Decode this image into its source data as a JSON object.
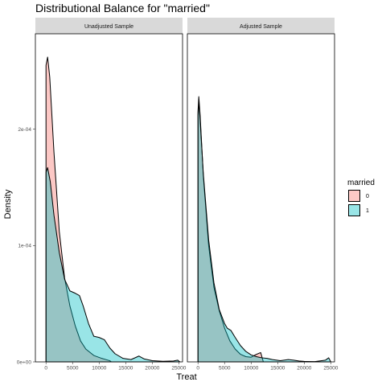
{
  "chart_data": {
    "type": "area",
    "title": "Distributional Balance for \"married\"",
    "xlabel": "Treat",
    "ylabel": "Density",
    "xlim": [
      -2000,
      25700
    ],
    "ylim": [
      0,
      0.000282
    ],
    "x_ticks": [
      0,
      5000,
      10000,
      15000,
      20000,
      25000
    ],
    "x_tick_labels": [
      "0",
      "5000",
      "10000",
      "15000",
      "20000",
      "25000"
    ],
    "y_ticks": [
      0,
      0.0001,
      0.0002
    ],
    "y_tick_labels": [
      "0e+00",
      "1e-04",
      "2e-04"
    ],
    "grid": false,
    "legend": {
      "title": "married",
      "position": "right",
      "entries": [
        {
          "label": "0",
          "color": "#F8766D"
        },
        {
          "label": "1",
          "color": "#00BFC4"
        }
      ]
    },
    "fill_alpha": 0.4,
    "panels": [
      {
        "label": "Unadjusted Sample",
        "series": [
          {
            "name": "0",
            "color": "#F8766D",
            "x": [
              0,
              300,
              700,
              1500,
              2500,
              3500,
              4500,
              5500,
              6500,
              7500,
              9000,
              10500,
              12000,
              12300
            ],
            "y": [
              0.000255,
              0.000262,
              0.000245,
              0.00018,
              0.000112,
              7.2e-05,
              4.8e-05,
              3.1e-05,
              1.8e-05,
              1.1e-05,
              5.5e-06,
              3e-06,
              1e-06,
              0
            ]
          },
          {
            "name": "1",
            "color": "#00BFC4",
            "x": [
              0,
              300,
              800,
              1500,
              2500,
              3500,
              4500,
              5500,
              6300,
              7000,
              8000,
              9000,
              10000,
              11000,
              12000,
              13000,
              14500,
              16000,
              17500,
              18500,
              20000,
              22000,
              24000,
              24800,
              25200
            ],
            "y": [
              0.000163,
              0.000167,
              0.000155,
              0.000126,
              9.4e-05,
              7.1e-05,
              6.1e-05,
              5.9e-05,
              5.7e-05,
              4.8e-05,
              3.3e-05,
              2.2e-05,
              2.1e-05,
              1.9e-05,
              1.2e-05,
              7e-06,
              3e-06,
              2e-06,
              5e-06,
              2.5e-06,
              1e-06,
              5e-07,
              8e-07,
              1.5e-06,
              0
            ]
          }
        ]
      },
      {
        "label": "Adjusted Sample",
        "series": [
          {
            "name": "0",
            "color": "#F8766D",
            "x": [
              0,
              150,
              400,
              1000,
              2000,
              3000,
              4000,
              5000,
              6000,
              7000,
              8000,
              9000,
              10000,
              11000,
              11800,
              12300
            ],
            "y": [
              0.000215,
              0.000228,
              0.000212,
              0.00016,
              0.0001,
              6.4e-05,
              4.4e-05,
              2.9e-05,
              1.8e-05,
              1.1e-05,
              6.5e-06,
              4.5e-06,
              4e-06,
              6.5e-06,
              8e-06,
              0
            ]
          },
          {
            "name": "1",
            "color": "#00BFC4",
            "x": [
              0,
              150,
              400,
              1000,
              2000,
              3000,
              4000,
              5000,
              5500,
              6200,
              7000,
              8000,
              9000,
              10000,
              11000,
              12000,
              13000,
              14000,
              15500,
              17000,
              18000,
              19000,
              20000,
              22000,
              24000,
              24600,
              25000
            ],
            "y": [
              0.000212,
              0.000223,
              0.000208,
              0.000162,
              0.000105,
              6.8e-05,
              4.5e-05,
              3.3e-05,
              2.9e-05,
              2.7e-05,
              2.1e-05,
              1.4e-05,
              9e-06,
              6e-06,
              4.5e-06,
              3.5e-06,
              3e-06,
              2e-06,
              1e-06,
              2e-06,
              1.5e-06,
              8e-07,
              4e-07,
              3e-07,
              1.5e-06,
              3.5e-06,
              0
            ]
          }
        ]
      }
    ]
  }
}
